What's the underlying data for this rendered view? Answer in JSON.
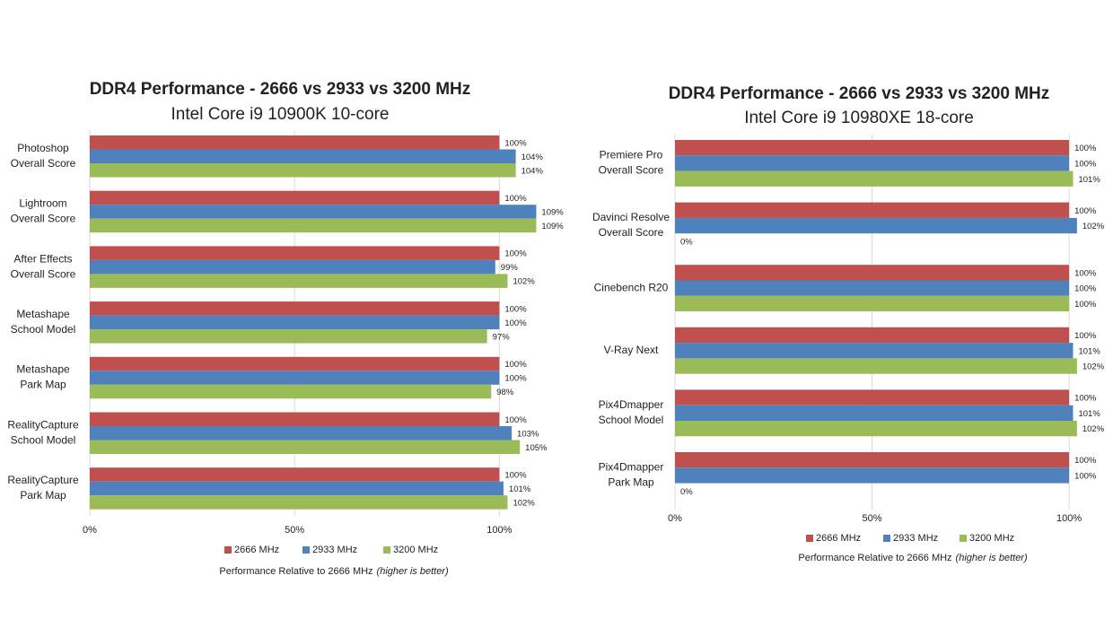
{
  "chart_data": [
    {
      "type": "bar",
      "orientation": "horizontal",
      "title": "DDR4 Performance - 2666 vs 2933 vs 3200 MHz",
      "subtitle": "Intel Core i9 10900K 10-core",
      "categories": [
        [
          "Photoshop",
          "Overall Score"
        ],
        [
          "Lightroom",
          "Overall Score"
        ],
        [
          "After Effects",
          "Overall Score"
        ],
        [
          "Metashape",
          "School Model"
        ],
        [
          "Metashape",
          "Park Map"
        ],
        [
          "RealityCapture",
          "School Model"
        ],
        [
          "RealityCapture",
          "Park Map"
        ]
      ],
      "series": [
        {
          "name": "2666 MHz",
          "color": "#c0504d",
          "values": [
            100,
            100,
            100,
            100,
            100,
            100,
            100
          ],
          "value_labels": [
            "100%",
            "100%",
            "100%",
            "100%",
            "100%",
            "100%",
            "100%"
          ]
        },
        {
          "name": "2933 MHz",
          "color": "#4f81bd",
          "values": [
            104,
            109,
            99,
            100,
            100,
            103,
            101
          ],
          "value_labels": [
            "104%",
            "109%",
            "99%",
            "100%",
            "100%",
            "103%",
            "101%"
          ]
        },
        {
          "name": "3200 MHz",
          "color": "#9bbb59",
          "values": [
            104,
            109,
            102,
            97,
            98,
            105,
            102
          ],
          "value_labels": [
            "104%",
            "109%",
            "102%",
            "97%",
            "98%",
            "105%",
            "102%"
          ]
        }
      ],
      "xlim": [
        0,
        110
      ],
      "xticks": [
        {
          "value": 0,
          "label": "0%"
        },
        {
          "value": 50,
          "label": "50%"
        },
        {
          "value": 100,
          "label": "100%"
        }
      ],
      "xlabel": "Performance Relative to 2666 MHz",
      "xlabel_note": "(higher is better)",
      "grid": true,
      "legend": "bottom"
    },
    {
      "type": "bar",
      "orientation": "horizontal",
      "title": "DDR4 Performance - 2666 vs 2933 vs 3200 MHz",
      "subtitle": "Intel Core i9 10980XE 18-core",
      "categories": [
        [
          "Premiere Pro",
          "Overall Score"
        ],
        [
          "Davinci Resolve",
          "Overall Score"
        ],
        [
          "Cinebench R20"
        ],
        [
          "V-Ray Next"
        ],
        [
          "Pix4Dmapper",
          "School Model"
        ],
        [
          "Pix4Dmapper",
          "Park Map"
        ]
      ],
      "series": [
        {
          "name": "2666 MHz",
          "color": "#c0504d",
          "values": [
            100,
            100,
            100,
            100,
            100,
            100
          ],
          "value_labels": [
            "100%",
            "100%",
            "100%",
            "100%",
            "100%",
            "100%"
          ]
        },
        {
          "name": "2933 MHz",
          "color": "#4f81bd",
          "values": [
            100,
            102,
            100,
            101,
            101,
            100
          ],
          "value_labels": [
            "100%",
            "102%",
            "100%",
            "101%",
            "101%",
            "100%"
          ]
        },
        {
          "name": "3200 MHz",
          "color": "#9bbb59",
          "values": [
            101,
            0,
            100,
            102,
            102,
            0
          ],
          "value_labels": [
            "101%",
            "0%",
            "100%",
            "102%",
            "102%",
            "0%"
          ]
        }
      ],
      "xlim": [
        0,
        110
      ],
      "xticks": [
        {
          "value": 0,
          "label": "0%"
        },
        {
          "value": 50,
          "label": "50%"
        },
        {
          "value": 100,
          "label": "100%"
        }
      ],
      "xlabel": "Performance Relative to 2666 MHz",
      "xlabel_note": "(higher is better)",
      "grid": true,
      "legend": "bottom"
    }
  ]
}
